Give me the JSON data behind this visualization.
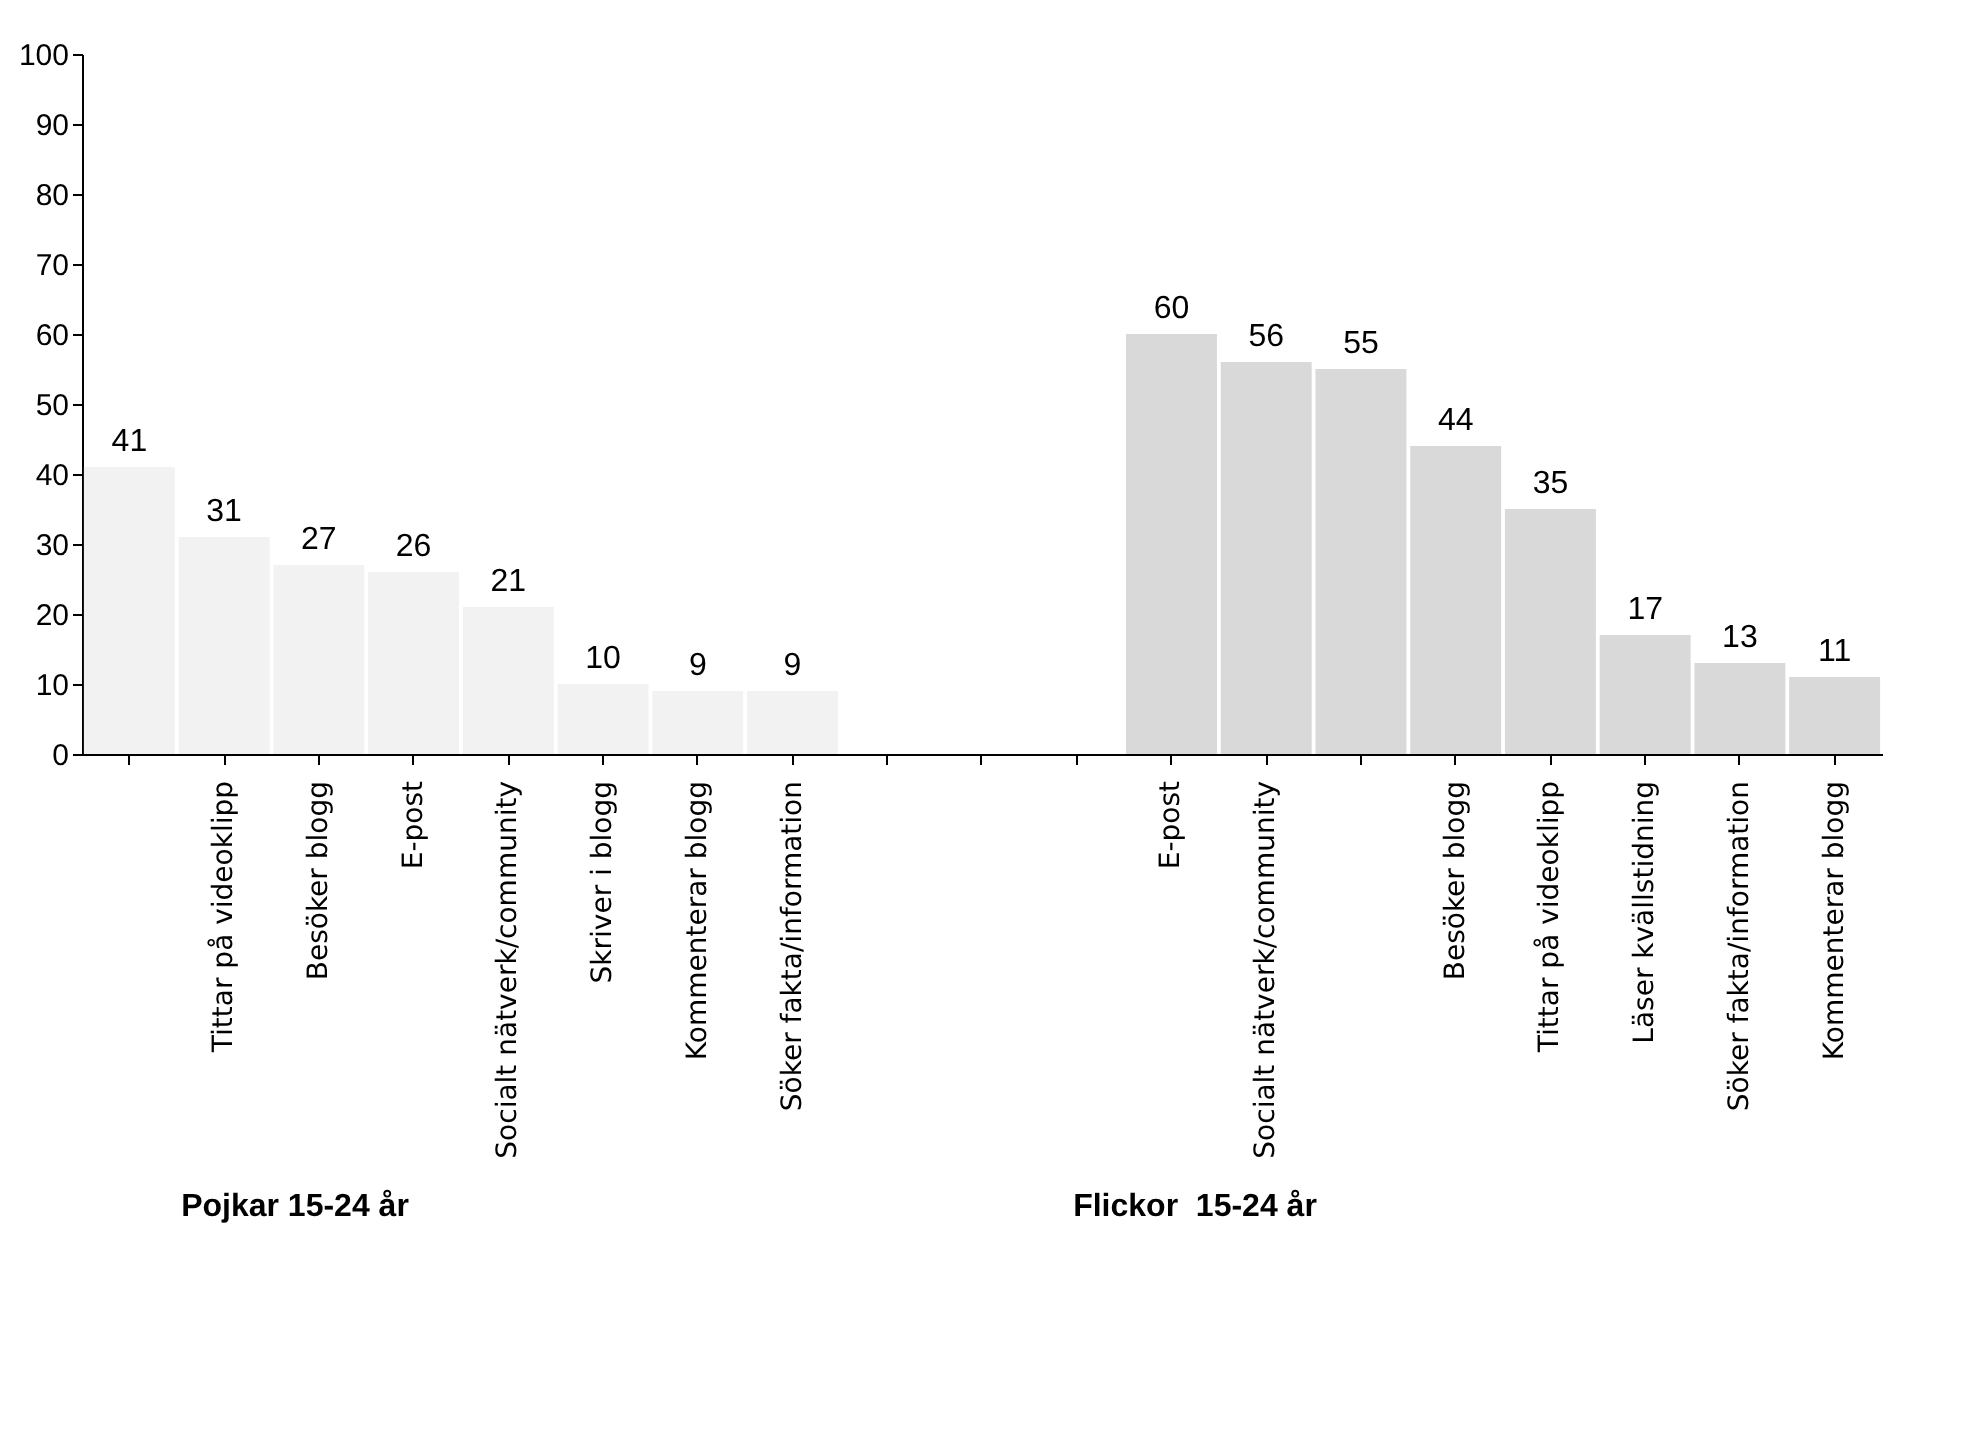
{
  "chart_data": {
    "type": "bar",
    "categories": [
      null,
      "Tittar på videoklipp",
      "Besöker blogg",
      "E-post",
      "Socialt nätverk/community",
      "Skriver i blogg",
      "Kommenterar blogg",
      "Söker fakta/information",
      null,
      null,
      null,
      "E-post",
      "Socialt nätverk/community",
      null,
      "Besöker blogg",
      "Tittar på videoklipp",
      "Läser kvällstidning",
      "Söker fakta/information",
      "Kommenterar blogg"
    ],
    "values": [
      41,
      31,
      27,
      26,
      21,
      10,
      9,
      9,
      null,
      null,
      null,
      60,
      56,
      55,
      44,
      35,
      17,
      13,
      11
    ],
    "colors": [
      "#f2f2f2",
      "#f2f2f2",
      "#f2f2f2",
      "#f2f2f2",
      "#f2f2f2",
      "#f2f2f2",
      "#f2f2f2",
      "#f2f2f2",
      "#f2f2f2",
      "#f2f2f2",
      "#f2f2f2",
      "#d9d9d9",
      "#d9d9d9",
      "#d9d9d9",
      "#d9d9d9",
      "#d9d9d9",
      "#d9d9d9",
      "#d9d9d9",
      "#d9d9d9"
    ],
    "ylim": [
      0,
      100
    ],
    "yticks": [
      0,
      10,
      20,
      30,
      40,
      50,
      60,
      70,
      80,
      90,
      100
    ],
    "data_labels": true,
    "grid": false,
    "legend": false,
    "annotations": [
      "Pojkar 15-24 år",
      "Flickor  15-24 år"
    ]
  }
}
